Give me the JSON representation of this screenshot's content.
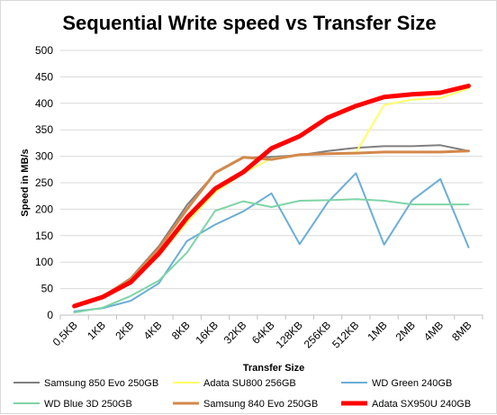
{
  "chart_data": {
    "type": "line",
    "title": "Sequential Write speed vs Transfer Size",
    "xlabel": "Transfer Size",
    "ylabel": "Speed in MB/s",
    "ylim": [
      0,
      500
    ],
    "yticks": [
      0,
      50,
      100,
      150,
      200,
      250,
      300,
      350,
      400,
      450,
      500
    ],
    "grid": true,
    "legend_position": "bottom",
    "categories": [
      "0,5KB",
      "1KB",
      "2KB",
      "4KB",
      "8KB",
      "16KB",
      "32KB",
      "64KB",
      "128KB",
      "256KB",
      "512KB",
      "1MB",
      "2MB",
      "4MB",
      "8MB"
    ],
    "series": [
      {
        "name": "Samsung 850 Evo 250GB",
        "color": "#7f7f7f",
        "width": 2,
        "values": [
          18,
          35,
          70,
          130,
          208,
          268,
          297,
          299,
          302,
          310,
          316,
          319,
          319,
          321,
          310
        ]
      },
      {
        "name": "Adata SU800 256GB",
        "color": "#ffff66",
        "width": 2,
        "values": [
          15,
          32,
          62,
          112,
          175,
          232,
          268,
          296,
          302,
          305,
          307,
          397,
          407,
          410,
          428
        ]
      },
      {
        "name": "WD Green 240GB",
        "color": "#6baed6",
        "width": 2,
        "values": [
          7,
          13,
          27,
          60,
          140,
          171,
          196,
          230,
          134,
          213,
          268,
          133,
          217,
          257,
          128
        ]
      },
      {
        "name": "WD Blue 3D 250GB",
        "color": "#7fd4a6",
        "width": 2,
        "values": [
          5,
          14,
          36,
          65,
          118,
          197,
          215,
          204,
          216,
          217,
          219,
          216,
          209,
          209,
          209
        ]
      },
      {
        "name": "Samsung 840 Evo 250GB",
        "color": "#d4884a",
        "width": 3,
        "values": [
          17,
          35,
          68,
          126,
          200,
          269,
          298,
          294,
          303,
          305,
          306,
          308,
          308,
          308,
          310
        ]
      },
      {
        "name": "Adata SX950U 240GB",
        "color": "#ff0000",
        "width": 5,
        "values": [
          17,
          34,
          62,
          116,
          184,
          239,
          270,
          315,
          338,
          373,
          395,
          412,
          417,
          420,
          433
        ]
      }
    ]
  }
}
